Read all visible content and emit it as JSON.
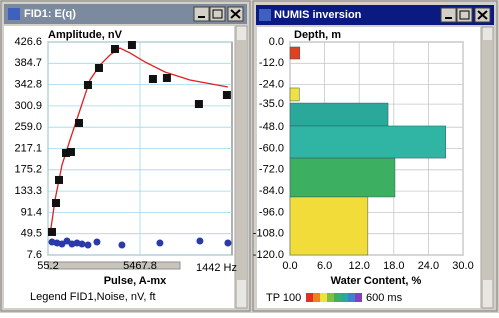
{
  "windows": [
    {
      "title": "FID1: E(q)"
    },
    {
      "title": "NUMIS inversion"
    }
  ],
  "chart_data": [
    {
      "type": "line",
      "ylabel": "Amplitude, nV",
      "xlabel": "Pulse, A-mx",
      "frequency_label": "1442 Hz",
      "legend_text": "Legend FID1,Noise, nV, ft",
      "xlim": [
        55.2,
        10880.4
      ],
      "xticks": [
        55.2,
        5467.8
      ],
      "ylim": [
        7.6,
        426.6
      ],
      "yticks": [
        426.6,
        384.7,
        342.8,
        300.9,
        {
          "value": 259,
          "label": "259.0"
        },
        217.1,
        175.2,
        133.3,
        91.4,
        49.5,
        7.6
      ],
      "grid": true,
      "series": [
        {
          "color": "#e02020",
          "marker": "none",
          "line": true,
          "x": [
            173,
            467,
            878,
            1349,
            1937,
            2525,
            3113,
            3701,
            4289,
            4877,
            5759,
            6935,
            8405,
            10639
          ],
          "values": [
            47.0,
            115.8,
            184.6,
            233.8,
            292.8,
            351.9,
            381.4,
            401.0,
            414.8,
            405.0,
            387.3,
            367.6,
            351.9,
            338.1
          ]
        },
        {
          "color": "#111111",
          "marker": "square",
          "line": false,
          "x": [
            290,
            526,
            702,
            1114,
            1407,
            1878,
            2407,
            3054,
            3995,
            4994,
            6229,
            7052,
            8934,
            10581
          ],
          "values": [
            52.9,
            109.9,
            155.2,
            208.3,
            210.2,
            267.3,
            342.0,
            375.5,
            412.8,
            420.7,
            353.8,
            355.8,
            304.6,
            322.3
          ]
        },
        {
          "color": "#2a3aa8",
          "marker": "circle",
          "line": false,
          "x": [
            290,
            585,
            878,
            1172,
            1466,
            1761,
            2054,
            2407,
            2936,
            4406,
            6641,
            8993,
            10639
          ],
          "values": [
            33.2,
            31.2,
            29.3,
            35.2,
            29.3,
            31.2,
            29.3,
            27.3,
            33.2,
            27.3,
            31.2,
            35.2,
            31.2
          ]
        }
      ]
    },
    {
      "type": "bar",
      "orientation": "horizontal",
      "ylabel": "Depth, m",
      "xlabel": "Water Content, %",
      "xlim": [
        0,
        30
      ],
      "xticks": [
        {
          "value": 0,
          "label": "0.0"
        },
        {
          "value": 6,
          "label": "6.0"
        },
        {
          "value": 12,
          "label": "12.0"
        },
        {
          "value": 18,
          "label": "18.0"
        },
        {
          "value": 24,
          "label": "24.0"
        },
        {
          "value": 30,
          "label": "30.0"
        }
      ],
      "ylim": [
        -120,
        0
      ],
      "yticks": [
        {
          "value": 0,
          "label": "0.0"
        },
        {
          "value": -12,
          "label": "-12.0"
        },
        {
          "value": -24,
          "label": "-24.0"
        },
        {
          "value": -35,
          "label": "-35.0"
        },
        {
          "value": -48,
          "label": "-48.0"
        },
        {
          "value": -60,
          "label": "-60.0"
        },
        {
          "value": -72,
          "label": "-72.0"
        },
        {
          "value": -84,
          "label": "-84.0"
        },
        {
          "value": -96,
          "label": "-96.0"
        },
        {
          "value": -108,
          "label": "-108.0"
        },
        {
          "value": -120,
          "label": "-120.0"
        }
      ],
      "grid": true,
      "values": [
        1.7,
        1.6,
        17.0,
        27.0,
        18.2,
        13.5
      ],
      "depth_top": [
        -2.8,
        -25.9,
        -34.4,
        -47.3,
        -65.4,
        -87.3
      ],
      "depth_bottom": [
        -9.6,
        -33.2,
        -47.3,
        -65.4,
        -87.3,
        -120
      ],
      "colors": [
        "#e04020",
        "#f0e040",
        "#2aa89a",
        "#30b4a4",
        "#3cb060",
        "#f2dc3a"
      ],
      "colorbar": {
        "left_label": "TP 100",
        "right_label": "600 ms"
      }
    }
  ]
}
